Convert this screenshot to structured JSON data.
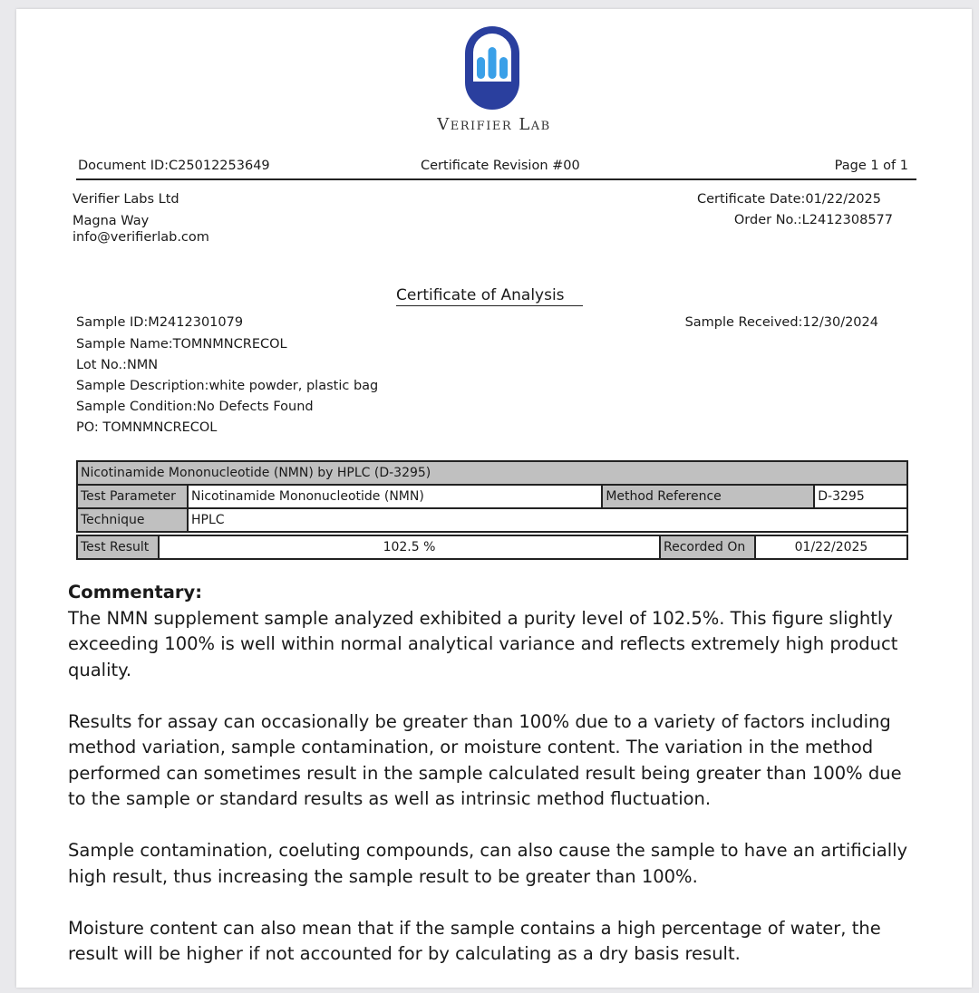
{
  "brand": {
    "name": "Verifier Lab",
    "logo_icon": "bar-chart-arch-icon",
    "colors": {
      "outer": "#2a3f9e",
      "bars": "#3aa0e8"
    }
  },
  "header": {
    "document_id": "Document ID:C25012253649",
    "revision": "Certificate Revision #00",
    "page": "Page 1 of 1"
  },
  "lab": {
    "name": "Verifier Labs Ltd",
    "street": "Magna Way",
    "email": "info@verifierlab.com",
    "certificate_date": "Certificate Date:01/22/2025",
    "order_no": "Order No.:L2412308577"
  },
  "title": "Certificate of Analysis",
  "sample": {
    "id": "Sample ID:M2412301079",
    "name": "Sample Name:TOMNMNCRECOL",
    "lot": "Lot No.:NMN",
    "description": "Sample Description:white powder, plastic bag",
    "condition": "Sample Condition:No Defects Found",
    "po": "PO: TOMNMNCRECOL",
    "received": "Sample Received:12/30/2024"
  },
  "table": {
    "heading": "Nicotinamide Mononucleotide (NMN) by HPLC (D-3295)",
    "test_parameter_label": "Test Parameter",
    "test_parameter": "Nicotinamide Mononucleotide (NMN)",
    "method_reference_label": "Method Reference",
    "method_reference": "D-3295",
    "technique_label": "Technique",
    "technique": "HPLC",
    "test_result_label": "Test Result",
    "test_result": "102.5 %",
    "recorded_on_label": "Recorded On",
    "recorded_on": "01/22/2025"
  },
  "commentary": {
    "heading": "Commentary:",
    "paragraphs": [
      "The NMN supplement sample analyzed exhibited a purity level of 102.5%. This figure slightly exceeding 100% is well within normal analytical variance and reflects extremely high product quality.",
      "Results for assay can occasionally be greater than 100% due to a variety of factors including method variation, sample contamination, or moisture content. The variation in the method performed can sometimes result in the sample calculated result being greater than 100% due to the sample or standard results as well as intrinsic method fluctuation.",
      "Sample contamination, coeluting compounds, can also cause the sample to have an artificially high result, thus increasing the sample result to be greater than 100%.",
      "Moisture content can also mean that if the sample contains a high percentage of water, the result will be higher if not accounted for by calculating as a dry basis result."
    ]
  }
}
